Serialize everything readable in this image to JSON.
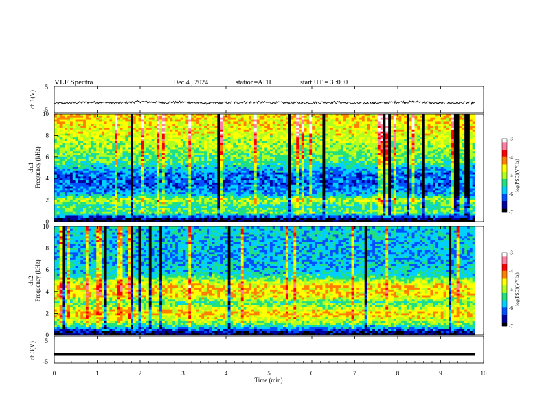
{
  "header": {
    "title": "VLF  Spectra",
    "date": "Dec.4  , 2024",
    "station": "station=ATH",
    "start_ut": "start  UT  =    3  :0   :0"
  },
  "chart_data": [
    {
      "type": "line",
      "panel": "ch1-waveform",
      "ylabel": "ch.1(V)",
      "ylim": [
        -5,
        5
      ],
      "yticks": [
        5,
        -5
      ],
      "xlim": [
        0,
        10
      ],
      "trace_end_min": 9.8,
      "x_min": [
        0,
        0.5,
        1,
        1.5,
        2,
        2.5,
        3,
        3.5,
        4,
        4.5,
        5,
        5.5,
        6,
        6.5,
        7,
        7.5,
        8,
        8.5,
        9,
        9.5,
        9.8
      ],
      "y": [
        -1.5,
        -1.2,
        -1.0,
        -1.3,
        -0.8,
        -1.1,
        -1.0,
        -1.4,
        -1.2,
        -1.0,
        -1.1,
        -1.3,
        -1.2,
        -1.0,
        -1.4,
        -1.3,
        -1.0,
        -0.9,
        -1.5,
        -1.2,
        -1.4
      ],
      "color": "#000000"
    },
    {
      "type": "heatmap",
      "panel": "ch1-spectrogram",
      "ylabel_top": "ch.1",
      "ylabel": "Frequency  (kHz)",
      "ylim": [
        0,
        10
      ],
      "yticks": [
        0,
        2,
        4,
        6,
        8,
        10
      ],
      "xlim": [
        0,
        10
      ],
      "data_end_min": 9.8,
      "colorbar": {
        "label": "log(PSD)(V²/Hz)",
        "range": [
          -7,
          -3
        ],
        "ticks": [
          "-3",
          "-4",
          "-5",
          "-6",
          "-7"
        ],
        "colors": [
          "#000000",
          "#0000a0",
          "#0050ff",
          "#00d0ff",
          "#20e080",
          "#b0ff20",
          "#ffff00",
          "#ff8000",
          "#ff0000",
          "#ff80a0",
          "#ffffff"
        ]
      },
      "frequency_profile_khz": [
        {
          "f": 0.2,
          "log_psd": -7.0
        },
        {
          "f": 0.8,
          "log_psd": -5.2
        },
        {
          "f": 1.5,
          "log_psd": -5.5
        },
        {
          "f": 2.0,
          "log_psd": -4.8
        },
        {
          "f": 2.5,
          "log_psd": -5.9
        },
        {
          "f": 3.5,
          "log_psd": -6.2
        },
        {
          "f": 4.5,
          "log_psd": -6.1
        },
        {
          "f": 5.5,
          "log_psd": -5.4
        },
        {
          "f": 7.0,
          "log_psd": -5.0
        },
        {
          "f": 8.5,
          "log_psd": -4.7
        },
        {
          "f": 9.5,
          "log_psd": -4.5
        }
      ]
    },
    {
      "type": "heatmap",
      "panel": "ch2-spectrogram",
      "ylabel_top": "ch.2",
      "ylabel": "Frequency  (kHz)",
      "ylim": [
        0,
        10
      ],
      "yticks": [
        0,
        2,
        4,
        6,
        8,
        10
      ],
      "xlim": [
        0,
        10
      ],
      "data_end_min": 9.8,
      "colorbar": {
        "label": "log(PSD)(V²/Hz)",
        "range": [
          -7,
          -3
        ],
        "ticks": [
          "-3",
          "-4",
          "-5",
          "-6",
          "-7"
        ],
        "colors": [
          "#000000",
          "#0000a0",
          "#0050ff",
          "#00d0ff",
          "#20e080",
          "#b0ff20",
          "#ffff00",
          "#ff8000",
          "#ff0000",
          "#ff80a0",
          "#ffffff"
        ]
      },
      "frequency_profile_khz": [
        {
          "f": 0.2,
          "log_psd": -6.8
        },
        {
          "f": 1.0,
          "log_psd": -5.2
        },
        {
          "f": 2.0,
          "log_psd": -4.4
        },
        {
          "f": 3.0,
          "log_psd": -5.4
        },
        {
          "f": 3.5,
          "log_psd": -4.6
        },
        {
          "f": 4.5,
          "log_psd": -4.5
        },
        {
          "f": 5.5,
          "log_psd": -5.6
        },
        {
          "f": 7.0,
          "log_psd": -5.9
        },
        {
          "f": 8.5,
          "log_psd": -5.8
        },
        {
          "f": 9.5,
          "log_psd": -5.7
        }
      ]
    },
    {
      "type": "line",
      "panel": "ch3-waveform",
      "ylabel": "ch.3(V)",
      "ylim": [
        -5,
        5
      ],
      "yticks": [
        5,
        -5
      ],
      "xlim": [
        0,
        10
      ],
      "trace_end_min": 9.8,
      "x_min": [
        0,
        9.8
      ],
      "y": [
        -1.8,
        -1.8
      ],
      "color": "#000000"
    }
  ],
  "xaxis": {
    "label": "Time  (min)",
    "range": [
      0,
      10
    ],
    "ticks": [
      "0",
      "1",
      "2",
      "3",
      "4",
      "5",
      "6",
      "7",
      "8",
      "9",
      "10"
    ]
  }
}
